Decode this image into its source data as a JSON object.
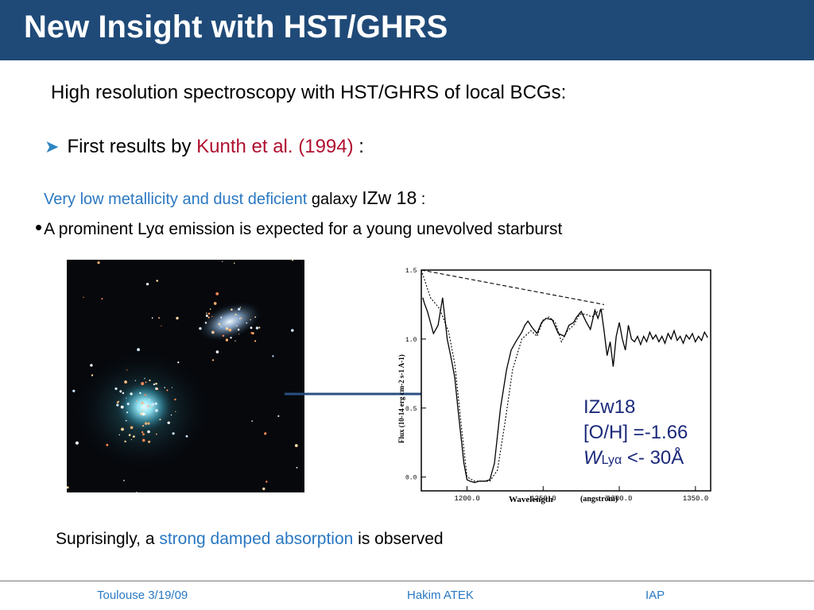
{
  "slide": {
    "title": "New Insight with HST/GHRS",
    "intro": "High resolution spectroscopy with HST/GHRS of local BCGs:",
    "bullet1": {
      "prefix": "First results by ",
      "reference": "Kunth et al. (1994)",
      "suffix": " :"
    },
    "line3": {
      "highlight": "Very low metallicity and dust deficient",
      "galaxy_word": " galaxy ",
      "galaxy_name": " IZw 18",
      "suffix": " :"
    },
    "line4": {
      "before": "A prominent Ly",
      "alpha": "α",
      "after": " emission is expected for a young unevolved starburst"
    },
    "bottom": {
      "prefix": "Suprisingly, a ",
      "highlight": "strong damped absorption",
      "suffix": " is observed"
    }
  },
  "annotation": {
    "name": "IZw18",
    "metallicity": "[O/H] =-1.66",
    "w": "W",
    "sub": "Lyα",
    "value": " <- 30Å"
  },
  "chart_data": {
    "type": "line",
    "xlabel": "Wavelength",
    "xunit": "(angström)",
    "ylabel": "Flux   (10-14 erg cm-2 s-1 A-1)",
    "x_ticks": [
      "1200.0",
      "1250.0",
      "1300.0",
      "1350.0"
    ],
    "y_ticks": [
      "0.0",
      "0.5",
      "1.0",
      "1.5"
    ],
    "xlim": [
      1170,
      1360
    ],
    "ylim": [
      -0.1,
      1.5
    ],
    "series": [
      {
        "style": "solid",
        "x": [
          1171,
          1172,
          1174,
          1176,
          1178,
          1181,
          1184,
          1187,
          1190,
          1192,
          1194,
          1196,
          1198,
          1200,
          1202,
          1205,
          1208,
          1212,
          1215,
          1218,
          1222,
          1226,
          1229,
          1232,
          1236,
          1238,
          1240,
          1243,
          1246,
          1249,
          1252,
          1256,
          1260,
          1264,
          1267,
          1270,
          1272,
          1275,
          1278,
          1281,
          1284,
          1286,
          1288,
          1290,
          1292,
          1294,
          1296,
          1298,
          1300,
          1302,
          1304,
          1306,
          1308,
          1310,
          1312,
          1314,
          1316,
          1318,
          1320,
          1322,
          1324,
          1326,
          1328,
          1330,
          1332,
          1334,
          1336,
          1338,
          1340,
          1342,
          1344,
          1346,
          1348,
          1350,
          1352,
          1354,
          1356,
          1358
        ],
        "y": [
          1.3,
          1.26,
          1.2,
          1.12,
          1.04,
          1.1,
          1.3,
          1.0,
          0.84,
          0.72,
          0.5,
          0.3,
          0.1,
          -0.02,
          -0.03,
          -0.04,
          -0.03,
          -0.03,
          -0.02,
          0.1,
          0.5,
          0.78,
          0.92,
          0.98,
          1.05,
          1.1,
          1.13,
          1.08,
          1.04,
          1.12,
          1.15,
          1.14,
          1.04,
          1.02,
          1.1,
          1.12,
          1.16,
          1.2,
          1.13,
          1.07,
          1.21,
          1.15,
          1.22,
          1.06,
          0.88,
          0.98,
          0.8,
          1.02,
          1.12,
          1.0,
          0.92,
          1.1,
          1.0,
          0.98,
          1.02,
          0.96,
          1.02,
          0.98,
          1.05,
          1.0,
          1.03,
          0.98,
          1.02,
          0.97,
          1.04,
          1.0,
          1.06,
          0.99,
          1.02,
          0.97,
          1.03,
          1.0,
          1.04,
          0.98,
          1.02,
          0.99,
          1.05,
          1.01
        ]
      },
      {
        "style": "dotted",
        "x": [
          1170,
          1176,
          1182,
          1188,
          1192,
          1196,
          1200,
          1205,
          1210,
          1215,
          1220,
          1225,
          1230,
          1236,
          1242,
          1246,
          1250,
          1254,
          1258,
          1262,
          1266,
          1270,
          1274,
          1278,
          1282,
          1286,
          1290
        ],
        "y": [
          1.5,
          1.3,
          1.22,
          1.05,
          0.82,
          0.4,
          0.0,
          -0.03,
          -0.03,
          -0.03,
          0.05,
          0.4,
          0.78,
          1.0,
          1.06,
          1.02,
          1.14,
          1.16,
          1.12,
          0.98,
          1.06,
          1.1,
          1.18,
          1.18,
          1.16,
          1.2,
          1.22
        ]
      },
      {
        "style": "dashed",
        "x": [
          1170,
          1290
        ],
        "y": [
          1.5,
          1.25
        ]
      }
    ]
  }
}
